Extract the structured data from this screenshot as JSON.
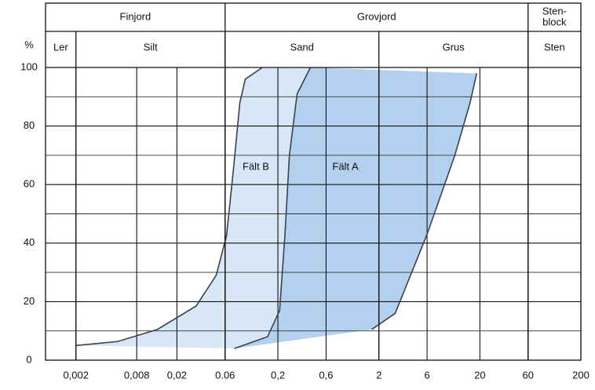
{
  "chart_data": {
    "type": "grain-size-bands",
    "y_unit": "%",
    "xscale": "log",
    "xlim": [
      0.001,
      200
    ],
    "ylim": [
      0,
      100
    ],
    "xticks": [
      {
        "value": 0.002,
        "label": "0,002"
      },
      {
        "value": 0.008,
        "label": "0,008"
      },
      {
        "value": 0.02,
        "label": "0,02"
      },
      {
        "value": 0.06,
        "label": "0.06"
      },
      {
        "value": 0.2,
        "label": "0,2"
      },
      {
        "value": 0.6,
        "label": "0,6"
      },
      2,
      6,
      20,
      60,
      200
    ],
    "yticks": [
      0,
      20,
      40,
      60,
      80,
      100
    ],
    "minor_yticks": [
      10,
      30,
      50,
      70,
      90
    ],
    "header": {
      "groups": [
        {
          "label": [
            "Finjord"
          ],
          "to": 0.06
        },
        {
          "label": [
            "Grovjord"
          ],
          "to": 60
        },
        {
          "label": [
            "Sten-",
            "block"
          ],
          "to": 200
        }
      ],
      "classes": [
        {
          "label": "Ler",
          "to": 0.002
        },
        {
          "label": "Silt",
          "to": 0.06
        },
        {
          "label": "Sand",
          "to": 2
        },
        {
          "label": "Grus",
          "to": 60
        },
        {
          "label": "Sten",
          "to": 200
        }
      ]
    },
    "curves": [
      {
        "x": [
          0.002,
          0.0052,
          0.0128,
          0.031,
          0.049,
          0.062,
          0.072,
          0.084,
          0.095,
          0.14
        ],
        "y": [
          5,
          6.4,
          10.5,
          18.5,
          29,
          42.6,
          64,
          88,
          96,
          100
        ]
      },
      {
        "x": [
          0.074,
          0.158,
          0.208,
          0.235,
          0.26,
          0.31,
          0.42
        ],
        "y": [
          4,
          8,
          17,
          43,
          70,
          91,
          100
        ]
      },
      {
        "x": [
          1.7,
          2.9,
          6.0,
          11.3,
          16,
          18.6
        ],
        "y": [
          10.5,
          16,
          43,
          70,
          88,
          98
        ]
      }
    ],
    "fields": [
      {
        "label": "Fält B",
        "color": "#d8e7f6"
      },
      {
        "label": "Fält A",
        "color": "#b3d1ee"
      }
    ],
    "curve_color": "#39424f"
  }
}
